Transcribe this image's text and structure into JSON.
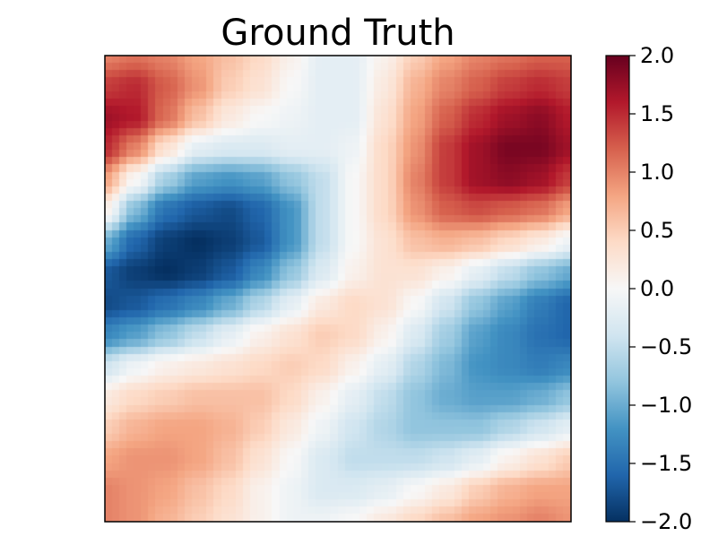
{
  "chart_data": {
    "type": "heatmap",
    "title": "Ground Truth",
    "xlabel": "",
    "ylabel": "",
    "x_ticks": [],
    "y_ticks": [],
    "colormap": "RdBu_r",
    "colormap_stops": [
      "#053061",
      "#2166ac",
      "#4393c3",
      "#92c5de",
      "#d1e5f0",
      "#f7f7f7",
      "#fddbc7",
      "#f4a582",
      "#d6604d",
      "#b2182b",
      "#67001f"
    ],
    "vmin": -2.0,
    "vmax": 2.0,
    "colorbar": {
      "ticks": [
        2.0,
        1.5,
        1.0,
        0.5,
        0.0,
        -0.5,
        -1.0,
        -1.5,
        -2.0
      ],
      "tick_labels": [
        "2.0",
        "1.5",
        "1.0",
        "0.5",
        "0.0",
        "−0.5",
        "−1.0",
        "−1.5",
        "−2.0"
      ]
    },
    "grid_size": [
      64,
      64
    ],
    "values": [
      [
        1.0,
        1.1,
        1.0,
        0.8,
        0.6,
        0.4,
        0.1,
        -0.2,
        -0.2,
        0.1,
        0.5,
        0.8,
        1.0,
        1.1,
        1.2,
        1.2
      ],
      [
        1.4,
        1.5,
        1.2,
        0.9,
        0.5,
        0.3,
        0.0,
        -0.2,
        -0.2,
        0.2,
        0.7,
        1.0,
        1.2,
        1.4,
        1.5,
        1.4
      ],
      [
        1.7,
        1.6,
        1.1,
        0.6,
        0.2,
        0.0,
        -0.1,
        -0.2,
        -0.2,
        0.3,
        0.8,
        1.2,
        1.5,
        1.7,
        1.8,
        1.6
      ],
      [
        1.5,
        1.0,
        0.3,
        -0.2,
        -0.3,
        -0.3,
        -0.2,
        -0.2,
        -0.1,
        0.4,
        0.9,
        1.4,
        1.7,
        1.9,
        1.9,
        1.7
      ],
      [
        0.8,
        0.0,
        -0.7,
        -1.1,
        -1.2,
        -1.1,
        -0.8,
        -0.5,
        0.0,
        0.4,
        1.0,
        1.4,
        1.7,
        1.8,
        1.7,
        1.4
      ],
      [
        0.1,
        -0.9,
        -1.5,
        -1.7,
        -1.8,
        -1.6,
        -1.2,
        -0.5,
        0.0,
        0.4,
        0.9,
        1.2,
        1.3,
        1.2,
        1.1,
        0.8
      ],
      [
        -1.0,
        -1.6,
        -1.9,
        -2.0,
        -1.9,
        -1.7,
        -1.2,
        -0.5,
        0.0,
        0.3,
        0.6,
        0.7,
        0.6,
        0.4,
        0.2,
        -0.1
      ],
      [
        -1.7,
        -1.9,
        -2.0,
        -1.9,
        -1.7,
        -1.3,
        -0.8,
        -0.3,
        0.1,
        0.3,
        0.3,
        0.1,
        -0.2,
        -0.5,
        -0.8,
        -1.0
      ],
      [
        -1.8,
        -1.7,
        -1.5,
        -1.3,
        -1.0,
        -0.6,
        -0.2,
        0.2,
        0.4,
        0.3,
        0.0,
        -0.4,
        -0.8,
        -1.1,
        -1.4,
        -1.6
      ],
      [
        -1.3,
        -1.1,
        -0.8,
        -0.5,
        -0.2,
        0.1,
        0.3,
        0.5,
        0.4,
        0.1,
        -0.3,
        -0.7,
        -1.1,
        -1.3,
        -1.5,
        -1.6
      ],
      [
        -0.4,
        -0.1,
        0.1,
        0.2,
        0.3,
        0.4,
        0.5,
        0.4,
        0.1,
        -0.2,
        -0.6,
        -0.9,
        -1.2,
        -1.3,
        -1.4,
        -1.3
      ],
      [
        0.2,
        0.4,
        0.5,
        0.6,
        0.6,
        0.6,
        0.4,
        0.1,
        -0.2,
        -0.5,
        -0.8,
        -1.0,
        -1.1,
        -1.1,
        -1.0,
        -0.8
      ],
      [
        0.5,
        0.7,
        0.8,
        0.8,
        0.7,
        0.5,
        0.2,
        -0.1,
        -0.4,
        -0.6,
        -0.8,
        -0.8,
        -0.8,
        -0.6,
        -0.4,
        -0.2
      ],
      [
        0.8,
        0.9,
        0.9,
        0.8,
        0.6,
        0.3,
        0.0,
        -0.3,
        -0.5,
        -0.5,
        -0.5,
        -0.4,
        -0.2,
        0.1,
        0.3,
        0.5
      ],
      [
        1.0,
        0.9,
        0.8,
        0.6,
        0.4,
        0.1,
        -0.1,
        -0.3,
        -0.3,
        -0.2,
        0.0,
        0.2,
        0.5,
        0.7,
        0.8,
        0.8
      ],
      [
        1.0,
        0.9,
        0.7,
        0.5,
        0.3,
        0.1,
        -0.1,
        -0.1,
        0.0,
        0.2,
        0.4,
        0.6,
        0.8,
        0.9,
        1.0,
        0.9
      ]
    ]
  }
}
